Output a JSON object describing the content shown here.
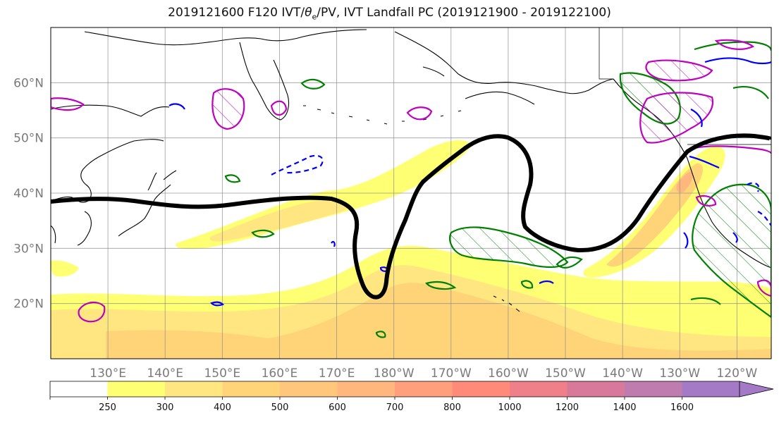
{
  "title": {
    "prefix": "2019121600 F120 IVT/",
    "theta_symbol": "θ",
    "theta_subscript": "e",
    "suffix": "/PV, IVT Landfall PC (2019121900 - 2019122100)"
  },
  "map": {
    "projection": "PlateCarree",
    "lon_range": [
      120,
      246
    ],
    "lat_range": [
      10,
      70
    ],
    "grid": true,
    "lon_ticks": [
      {
        "lon": 130,
        "label": "130°E"
      },
      {
        "lon": 140,
        "label": "140°E"
      },
      {
        "lon": 150,
        "label": "150°E"
      },
      {
        "lon": 160,
        "label": "160°E"
      },
      {
        "lon": 170,
        "label": "170°E"
      },
      {
        "lon": 180,
        "label": "180°W"
      },
      {
        "lon": 190,
        "label": "170°W"
      },
      {
        "lon": 200,
        "label": "160°W"
      },
      {
        "lon": 210,
        "label": "150°W"
      },
      {
        "lon": 220,
        "label": "140°W"
      },
      {
        "lon": 230,
        "label": "130°W"
      },
      {
        "lon": 240,
        "label": "120°W"
      }
    ],
    "lat_ticks": [
      {
        "lat": 20,
        "label": "20°N"
      },
      {
        "lat": 30,
        "label": "30°N"
      },
      {
        "lat": 40,
        "label": "40°N"
      },
      {
        "lat": 50,
        "label": "50°N"
      },
      {
        "lat": 60,
        "label": "60°N"
      }
    ]
  },
  "colorbar": {
    "bounds": [
      0,
      250,
      300,
      400,
      500,
      600,
      700,
      800,
      1000,
      1200,
      1400,
      1600
    ],
    "labels": [
      "250",
      "300",
      "400",
      "500",
      "600",
      "700",
      "800",
      "1000",
      "1200",
      "1400",
      "1600"
    ],
    "colors": [
      "#ffffff",
      "#ffff73",
      "#ffe680",
      "#ffd479",
      "#ffc67c",
      "#ffb77e",
      "#ff9f7c",
      "#ff8a7a",
      "#ef7f89",
      "#d8799b",
      "#bf7caf",
      "#a47ac6"
    ],
    "extend": "max"
  },
  "colors": {
    "pv_contour": "#000000",
    "theta_e_a": "#008000",
    "theta_e_b": "#c000c0",
    "pv_negative": "#0000ff",
    "coast": "#000000"
  }
}
